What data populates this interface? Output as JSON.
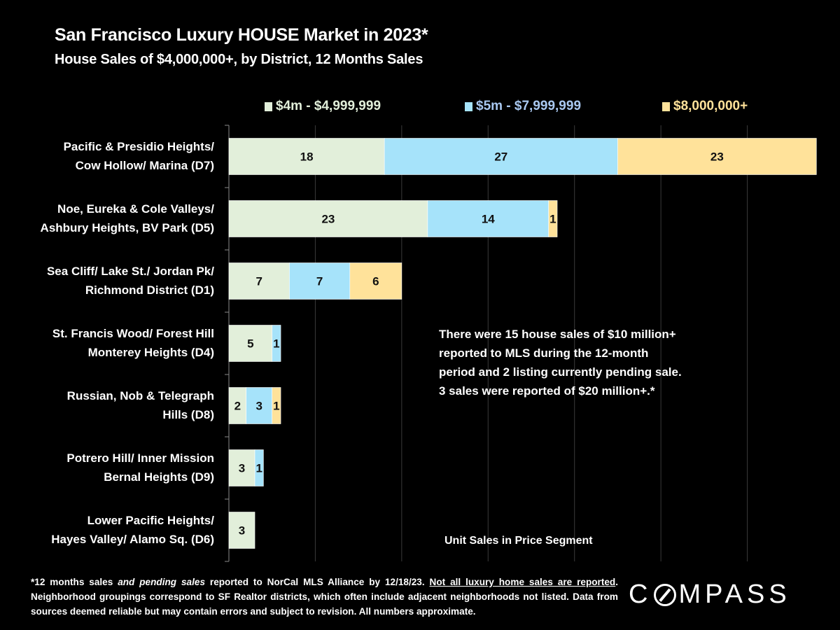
{
  "header": {
    "title": "San Francisco Luxury HOUSE Market in 2023*",
    "subtitle": "House Sales of $4,000,000+, by District, 12 Months Sales"
  },
  "chart_data": {
    "type": "bar",
    "orientation": "horizontal",
    "stacked": true,
    "title": "San Francisco Luxury HOUSE Market in 2023*",
    "subtitle": "House Sales of $4,000,000+, by District, 12 Months Sales",
    "xlabel": "Unit Sales in Price Segment",
    "ylabel": "",
    "xlim": [
      0,
      70
    ],
    "grid": true,
    "gridlines_at": [
      10,
      20,
      30,
      40,
      50,
      60
    ],
    "legend_position": "top",
    "categories": [
      "Pacific & Presidio Heights/ Cow Hollow/ Marina (D7)",
      "Noe, Eureka & Cole Valleys/ Ashbury Heights, BV Park (D5)",
      "Sea Cliff/ Lake St./ Jordan Pk/ Richmond District (D1)",
      "St. Francis Wood/ Forest Hill Monterey Heights (D4)",
      "Russian, Nob & Telegraph Hills (D8)",
      "Potrero Hill/ Inner Mission Bernal Heights (D9)",
      "Lower Pacific Heights/ Hayes Valley/ Alamo Sq. (D6)"
    ],
    "category_lines": [
      [
        "Pacific & Presidio Heights/",
        "Cow Hollow/ Marina (D7)"
      ],
      [
        "Noe, Eureka & Cole Valleys/",
        "Ashbury Heights, BV Park (D5)"
      ],
      [
        "Sea Cliff/ Lake St./ Jordan Pk/",
        "Richmond District (D1)"
      ],
      [
        "St. Francis Wood/ Forest Hill",
        "Monterey Heights (D4)"
      ],
      [
        "Russian, Nob & Telegraph",
        "Hills (D8)"
      ],
      [
        "Potrero Hill/ Inner Mission",
        "Bernal Heights (D9)"
      ],
      [
        "Lower Pacific Heights/",
        "Hayes Valley/ Alamo Sq. (D6)"
      ]
    ],
    "series": [
      {
        "name": "$4m - $4,999,999",
        "color": "#e2efda",
        "legend_text_color": "#e2efda",
        "values": [
          18,
          23,
          7,
          5,
          2,
          3,
          3
        ]
      },
      {
        "name": "$5m - $7,999,999",
        "color": "#a6e3fa",
        "legend_text_color": "#a9c8f0",
        "values": [
          27,
          14,
          7,
          1,
          3,
          1,
          0
        ]
      },
      {
        "name": "$8,000,000+",
        "color": "#ffe29a",
        "legend_text_color": "#ffe29a",
        "values": [
          23,
          1,
          6,
          0,
          1,
          0,
          0
        ]
      }
    ]
  },
  "callout": {
    "lines": [
      "There were 15 house sales of $10 million+",
      "reported to MLS during the 12-month",
      "period and 2 listing currently pending sale.",
      "3 sales were reported of $20 million+.*"
    ]
  },
  "footnote": {
    "part1": "*12 months sales ",
    "part2_italic": "and pending sales",
    "part3": " reported to NorCal MLS Alliance by 12/18/23. ",
    "part4_underlined": "Not all luxury home sales are reported",
    "part5": ". Neighborhood groupings correspond to SF Realtor districts, which often include adjacent neighborhoods not listed. Data from sources deemed reliable but may contain errors and subject to revision. All numbers approximate."
  },
  "logo": {
    "before": "C",
    "after": "MPASS"
  },
  "colors": {
    "background": "#000000",
    "gridline": "#3a3a3a",
    "bar_label": "#111111"
  }
}
